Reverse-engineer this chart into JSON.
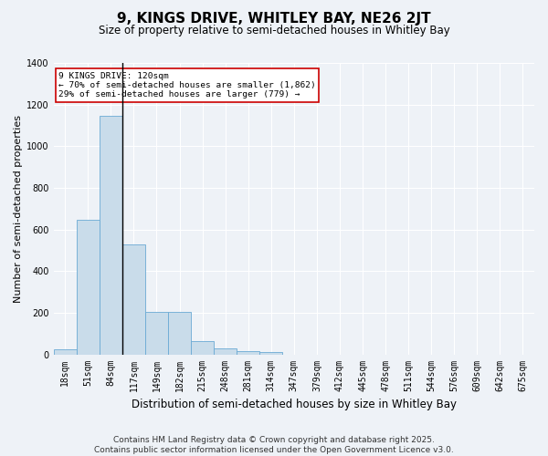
{
  "title": "9, KINGS DRIVE, WHITLEY BAY, NE26 2JT",
  "subtitle": "Size of property relative to semi-detached houses in Whitley Bay",
  "xlabel": "Distribution of semi-detached houses by size in Whitley Bay",
  "ylabel": "Number of semi-detached properties",
  "footer_line1": "Contains HM Land Registry data © Crown copyright and database right 2025.",
  "footer_line2": "Contains public sector information licensed under the Open Government Licence v3.0.",
  "annotation_title": "9 KINGS DRIVE: 120sqm",
  "annotation_line2": "← 70% of semi-detached houses are smaller (1,862)",
  "annotation_line3": "29% of semi-detached houses are larger (779) →",
  "bin_labels": [
    "18sqm",
    "51sqm",
    "84sqm",
    "117sqm",
    "149sqm",
    "182sqm",
    "215sqm",
    "248sqm",
    "281sqm",
    "314sqm",
    "347sqm",
    "379sqm",
    "412sqm",
    "445sqm",
    "478sqm",
    "511sqm",
    "544sqm",
    "576sqm",
    "609sqm",
    "642sqm",
    "675sqm"
  ],
  "bar_values": [
    25,
    648,
    1148,
    530,
    205,
    205,
    65,
    30,
    15,
    10,
    0,
    0,
    0,
    0,
    0,
    0,
    0,
    0,
    0,
    0,
    0
  ],
  "bar_color": "#c9dcea",
  "bar_edge_color": "#6aaad4",
  "ylim": [
    0,
    1400
  ],
  "yticks": [
    0,
    200,
    400,
    600,
    800,
    1000,
    1200,
    1400
  ],
  "bg_color": "#eef2f7",
  "plot_bg_color": "#eef2f7",
  "annotation_box_color": "white",
  "annotation_box_edge": "#cc0000",
  "title_fontsize": 11,
  "subtitle_fontsize": 8.5,
  "axis_label_fontsize": 8,
  "tick_fontsize": 7,
  "footer_fontsize": 6.5,
  "property_line_index": 3
}
